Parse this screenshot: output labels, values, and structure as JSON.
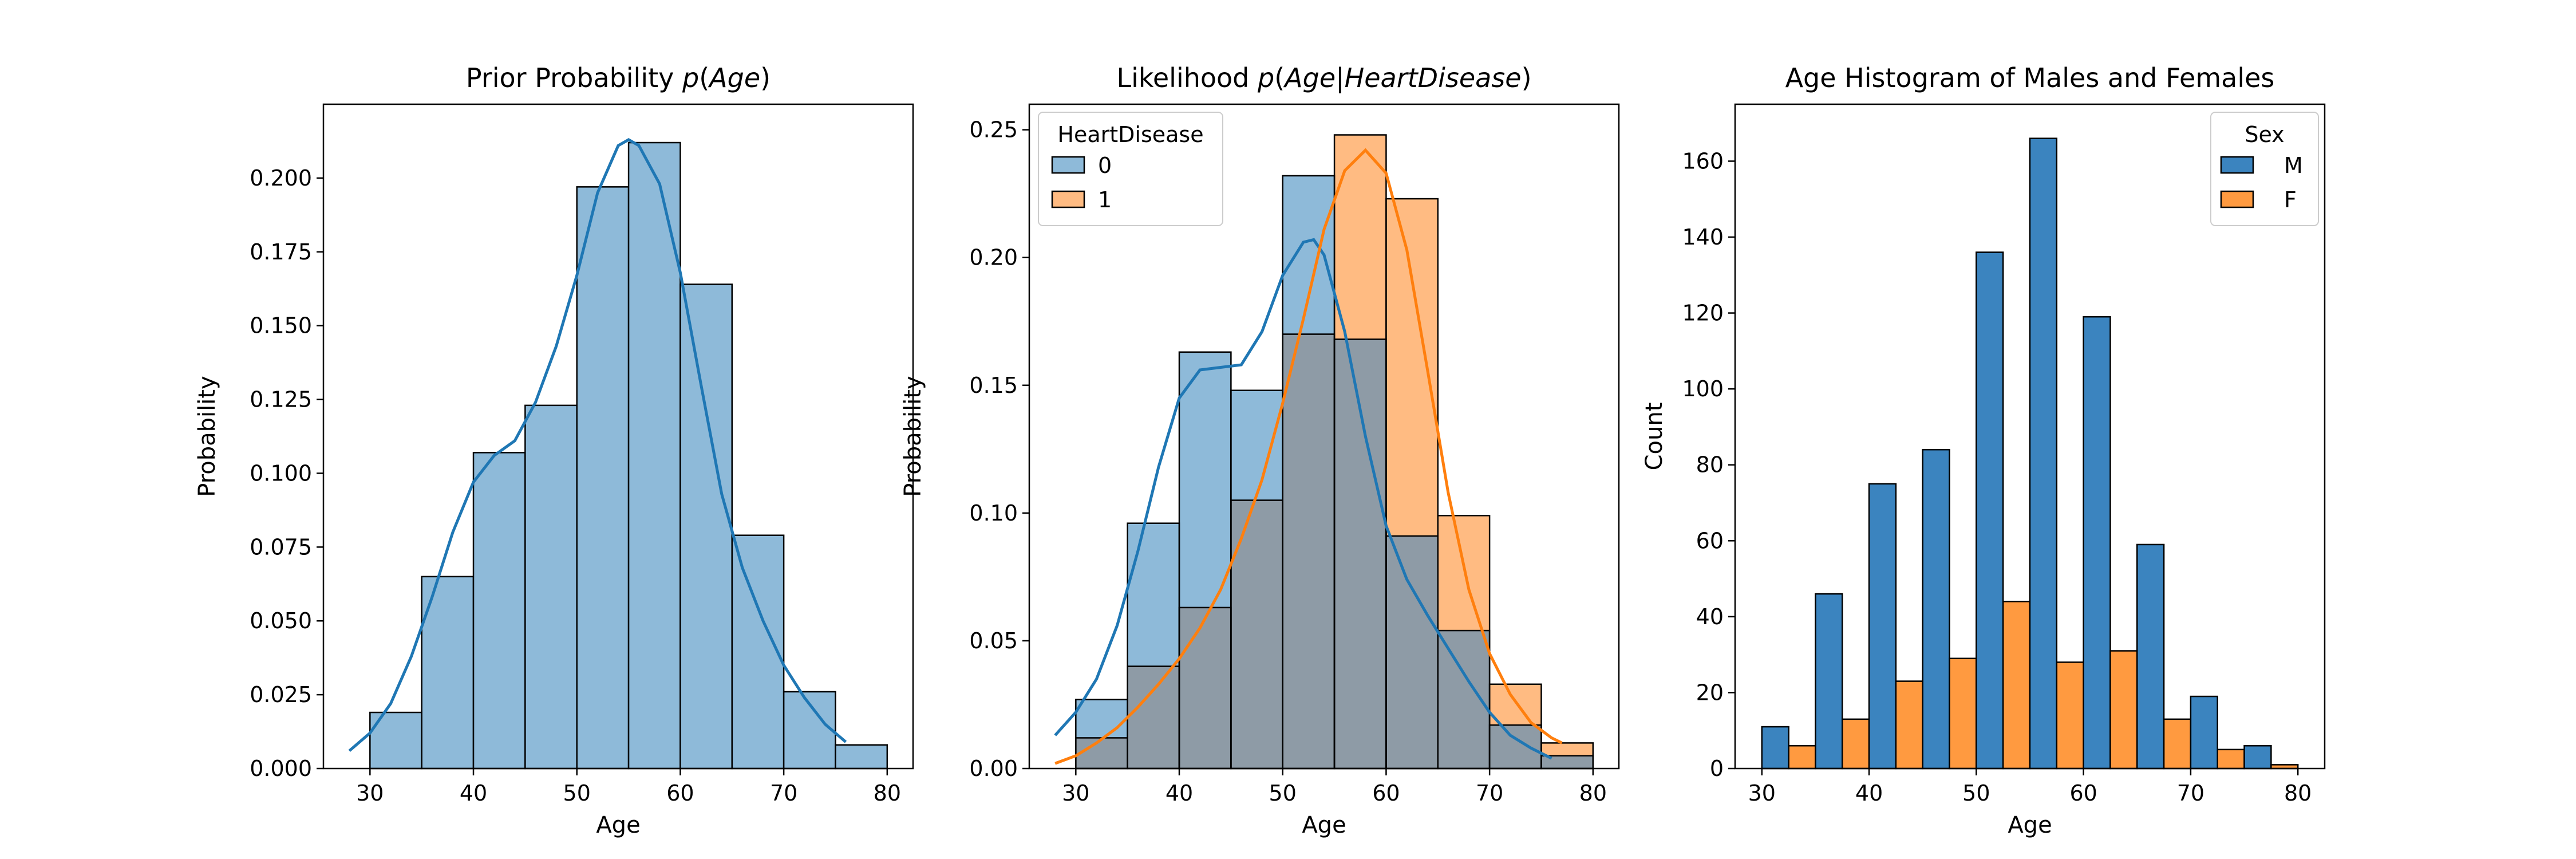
{
  "chart_data": [
    {
      "type": "bar",
      "title": "Prior Probability p(Age)",
      "title_parts": [
        "Prior Probability ",
        "p",
        "(",
        "Age",
        ")"
      ],
      "xlabel": "Age",
      "ylabel": "Probability",
      "xlim": [
        25.5,
        82.5
      ],
      "ylim": [
        0,
        0.225
      ],
      "xticks": [
        "30",
        "40",
        "50",
        "60",
        "70",
        "80"
      ],
      "yticks": [
        "0.000",
        "0.025",
        "0.050",
        "0.075",
        "0.100",
        "0.125",
        "0.150",
        "0.175",
        "0.200"
      ],
      "bin_edges": [
        30,
        35,
        40,
        45,
        50,
        55,
        60,
        65,
        70,
        75,
        80
      ],
      "values": [
        0.019,
        0.065,
        0.107,
        0.123,
        0.197,
        0.212,
        0.164,
        0.079,
        0.026,
        0.008
      ],
      "kde": {
        "x": [
          28,
          30,
          32,
          34,
          36,
          38,
          40,
          42,
          44,
          46,
          48,
          50,
          52,
          54,
          55,
          56,
          58,
          60,
          62,
          64,
          66,
          68,
          70,
          72,
          74,
          76
        ],
        "y": [
          0.006,
          0.012,
          0.022,
          0.038,
          0.058,
          0.08,
          0.097,
          0.106,
          0.111,
          0.124,
          0.143,
          0.167,
          0.195,
          0.211,
          0.213,
          0.211,
          0.198,
          0.168,
          0.13,
          0.093,
          0.068,
          0.05,
          0.035,
          0.024,
          0.015,
          0.009
        ]
      },
      "colors": {
        "bar": "#8ebad9",
        "edge": "#000000",
        "kde": "#1f77b4"
      },
      "grid": false
    },
    {
      "type": "bar",
      "title": "Likelihood p(Age|HeartDisease)",
      "title_parts": [
        "Likelihood ",
        "p",
        "(",
        "Age",
        "|",
        "HeartDisease",
        ")"
      ],
      "xlabel": "Age",
      "ylabel": "Probability",
      "xlim": [
        25.5,
        82.5
      ],
      "ylim": [
        0,
        0.26
      ],
      "xticks": [
        "30",
        "40",
        "50",
        "60",
        "70",
        "80"
      ],
      "yticks": [
        "0.00",
        "0.05",
        "0.10",
        "0.15",
        "0.20",
        "0.25"
      ],
      "bin_edges": [
        30,
        35,
        40,
        45,
        50,
        55,
        60,
        65,
        70,
        75,
        80
      ],
      "legend": {
        "title": "HeartDisease",
        "placement": "top-left"
      },
      "series": [
        {
          "name": "0",
          "values": [
            0.027,
            0.096,
            0.163,
            0.148,
            0.232,
            0.168,
            0.091,
            0.054,
            0.017,
            0.005
          ],
          "kde": {
            "x": [
              28,
              30,
              32,
              34,
              36,
              38,
              40,
              42,
              44,
              46,
              48,
              50,
              52,
              53,
              54,
              56,
              58,
              60,
              62,
              64,
              66,
              68,
              70,
              72,
              74,
              76
            ],
            "y": [
              0.013,
              0.022,
              0.035,
              0.056,
              0.085,
              0.118,
              0.145,
              0.156,
              0.157,
              0.158,
              0.171,
              0.193,
              0.206,
              0.207,
              0.201,
              0.171,
              0.13,
              0.095,
              0.074,
              0.06,
              0.047,
              0.034,
              0.022,
              0.013,
              0.008,
              0.004
            ]
          },
          "colors": {
            "bar": "#8ebad9",
            "line": "#1f77b4"
          }
        },
        {
          "name": "1",
          "values": [
            0.012,
            0.04,
            0.063,
            0.105,
            0.17,
            0.248,
            0.223,
            0.099,
            0.033,
            0.01
          ],
          "kde": {
            "x": [
              28,
              30,
              32,
              34,
              36,
              38,
              40,
              42,
              44,
              46,
              48,
              50,
              52,
              54,
              56,
              58,
              60,
              62,
              64,
              66,
              68,
              70,
              72,
              74,
              76,
              77
            ],
            "y": [
              0.002,
              0.005,
              0.01,
              0.016,
              0.024,
              0.033,
              0.043,
              0.055,
              0.07,
              0.09,
              0.113,
              0.143,
              0.176,
              0.211,
              0.234,
              0.242,
              0.233,
              0.203,
              0.156,
              0.108,
              0.07,
              0.045,
              0.029,
              0.018,
              0.012,
              0.01
            ]
          },
          "colors": {
            "bar": "#ffbb82",
            "line": "#ff7f0e"
          }
        }
      ],
      "overlap_color": "#8e9ba6",
      "grid": false
    },
    {
      "type": "bar",
      "title": "Age Histogram of Males and Females",
      "xlabel": "Age",
      "ylabel": "Count",
      "xlim": [
        27.5,
        82.5
      ],
      "ylim": [
        0,
        175
      ],
      "xticks": [
        "30",
        "40",
        "50",
        "60",
        "70",
        "80"
      ],
      "yticks": [
        "0",
        "20",
        "40",
        "60",
        "80",
        "100",
        "120",
        "140",
        "160"
      ],
      "bin_edges": [
        30,
        35,
        40,
        45,
        50,
        55,
        60,
        65,
        70,
        75,
        80
      ],
      "legend": {
        "title": "Sex",
        "placement": "top-right"
      },
      "series": [
        {
          "name": "M",
          "values": [
            11,
            46,
            75,
            84,
            136,
            166,
            119,
            59,
            19,
            6
          ],
          "color": "#3b84bf"
        },
        {
          "name": "F",
          "values": [
            6,
            13,
            23,
            29,
            44,
            28,
            31,
            13,
            5,
            1
          ],
          "color": "#ff9a40"
        }
      ],
      "grid": false
    }
  ]
}
